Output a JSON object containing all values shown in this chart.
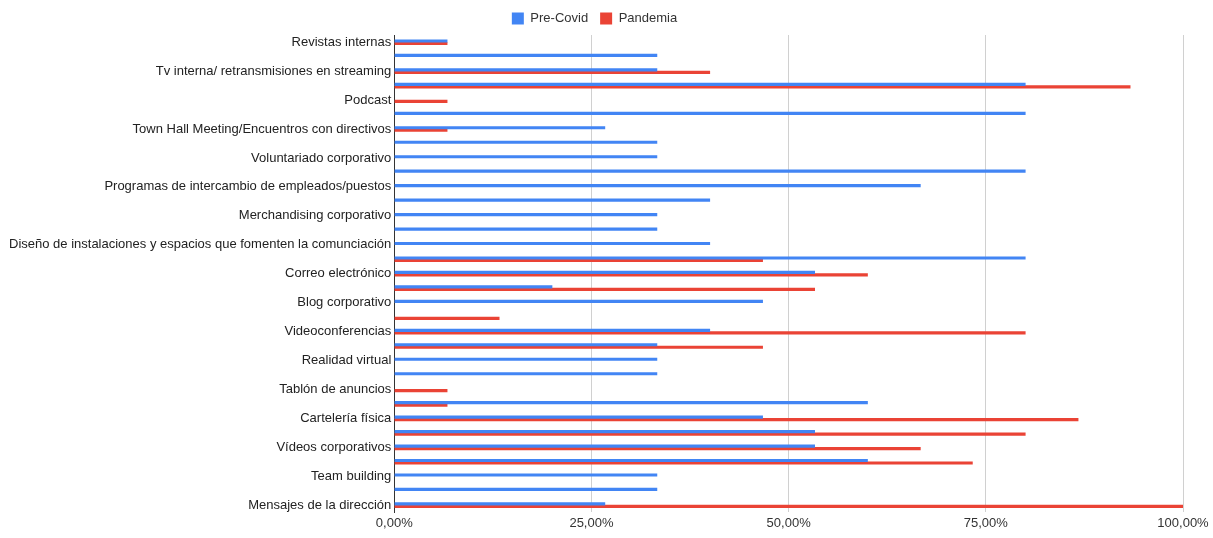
{
  "chart_data": {
    "type": "bar",
    "orientation": "horizontal",
    "categories": [
      "Revistas internas",
      null,
      "Tv interna/ retransmisiones en streaming",
      null,
      "Podcast",
      null,
      "Town Hall Meeting/Encuentros con directivos",
      null,
      "Voluntariado corporativo",
      null,
      "Programas de intercambio de empleados/puestos",
      null,
      "Merchandising corporativo",
      null,
      "Diseño de instalaciones y espacios que fomenten la comunciación",
      null,
      "Correo electrónico",
      null,
      "Blog corporativo",
      null,
      "Videoconferencias",
      null,
      "Realidad virtual",
      null,
      "Tablón de anuncios",
      null,
      "Cartelería física",
      null,
      "Vídeos corporativos",
      null,
      "Team building",
      null,
      "Mensajes de la dirección"
    ],
    "series": [
      {
        "name": "Pre-Covid",
        "color": "#4285f4",
        "values": [
          6.7,
          33.3,
          33.3,
          80,
          null,
          80,
          26.7,
          33.3,
          33.3,
          80,
          66.7,
          40,
          33.3,
          33.3,
          40,
          80,
          53.3,
          20,
          46.7,
          null,
          40,
          33.3,
          33.3,
          33.3,
          null,
          60,
          46.7,
          53.3,
          53.3,
          60,
          33.3,
          33.3,
          26.7
        ]
      },
      {
        "name": "Pandemia",
        "color": "#ea4335",
        "values": [
          6.7,
          null,
          40,
          93.3,
          6.7,
          null,
          6.7,
          null,
          null,
          null,
          null,
          null,
          null,
          null,
          null,
          46.7,
          60,
          53.3,
          null,
          13.3,
          80,
          46.7,
          null,
          null,
          6.7,
          6.7,
          86.7,
          80,
          66.7,
          73.3,
          null,
          null,
          100
        ]
      }
    ],
    "xlim": [
      0,
      100
    ],
    "xticks": [
      {
        "value": 0,
        "label": "0,00%"
      },
      {
        "value": 25,
        "label": "25,00%"
      },
      {
        "value": 50,
        "label": "50,00%"
      },
      {
        "value": 75,
        "label": "75,00%"
      },
      {
        "value": 100,
        "label": "100,00%"
      }
    ],
    "grid": "x",
    "legend": "top"
  }
}
